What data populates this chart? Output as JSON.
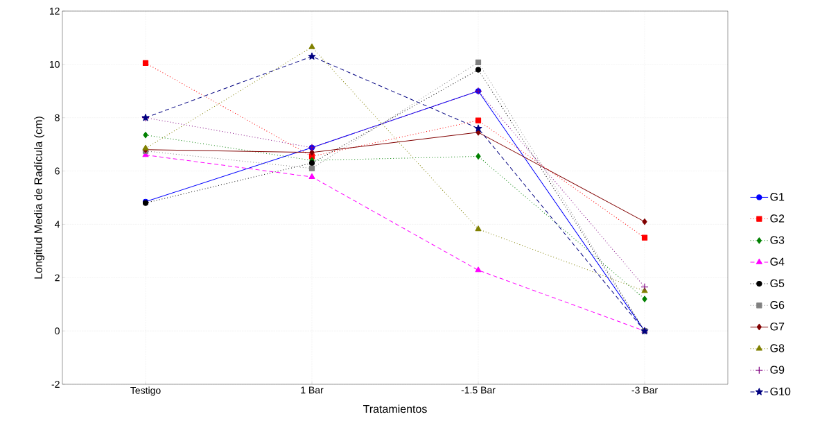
{
  "chart_data": {
    "type": "line",
    "xlabel": "Tratamientos",
    "ylabel": "Longitud Media de Radícula (cm)",
    "categories": [
      "Testigo",
      "1 Bar",
      "-1.5 Bar",
      "-3 Bar"
    ],
    "ylim": [
      -2,
      12
    ],
    "yticks": [
      -2,
      0,
      2,
      4,
      6,
      8,
      10,
      12
    ],
    "grid": true,
    "legend": "right",
    "series": [
      {
        "name": "G1",
        "color": "#0000ff",
        "marker": "circle",
        "line_style": "solid",
        "values": [
          4.85,
          6.88,
          9.0,
          0
        ]
      },
      {
        "name": "G2",
        "color": "#ff0000",
        "marker": "square",
        "line_style": "dotted",
        "values": [
          10.05,
          6.55,
          7.9,
          3.5
        ]
      },
      {
        "name": "G3",
        "color": "#008000",
        "marker": "diamond",
        "line_style": "dotted",
        "values": [
          7.35,
          6.4,
          6.55,
          1.2
        ]
      },
      {
        "name": "G4",
        "color": "#ff00ff",
        "marker": "triangle",
        "line_style": "dashed",
        "values": [
          6.6,
          5.78,
          2.28,
          0
        ]
      },
      {
        "name": "G5",
        "color": "#000000",
        "marker": "circle",
        "line_style": "dotted",
        "values": [
          4.8,
          6.3,
          9.8,
          0
        ]
      },
      {
        "name": "G6",
        "color": "#808080",
        "marker": "square",
        "line_style": "dotted",
        "values": [
          6.75,
          6.1,
          10.08,
          0
        ]
      },
      {
        "name": "G7",
        "color": "#800000",
        "marker": "diamond",
        "line_style": "solid",
        "values": [
          6.8,
          6.7,
          7.45,
          4.1
        ]
      },
      {
        "name": "G8",
        "color": "#808000",
        "marker": "triangle",
        "line_style": "dotted",
        "values": [
          6.85,
          10.65,
          3.82,
          1.5
        ]
      },
      {
        "name": "G9",
        "color": "#800080",
        "marker": "cross",
        "line_style": "dotted",
        "values": [
          8.0,
          6.88,
          9.0,
          1.65
        ]
      },
      {
        "name": "G10",
        "color": "#000080",
        "marker": "star",
        "line_style": "dashed",
        "values": [
          8.0,
          10.3,
          7.6,
          0
        ]
      }
    ]
  }
}
